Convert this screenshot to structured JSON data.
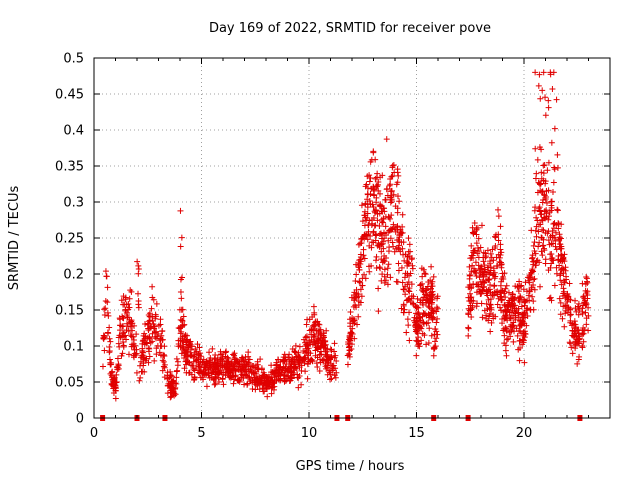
{
  "chart_data": {
    "type": "scatter",
    "title": "Day 169 of 2022, SRMTID for receiver pove",
    "xlabel": "GPS time / hours",
    "ylabel": "SRMTID / TECUs",
    "xlim": [
      0,
      24
    ],
    "ylim": [
      0,
      0.5
    ],
    "xticks": [
      0,
      5,
      10,
      15,
      20
    ],
    "xtick_labels": [
      "0",
      "5",
      "10",
      "15",
      "20"
    ],
    "yticks": [
      0,
      0.05,
      0.1,
      0.15,
      0.2,
      0.25,
      0.3,
      0.35,
      0.4,
      0.45,
      0.5
    ],
    "ytick_labels": [
      "0",
      "0.05",
      "0.1",
      "0.15",
      "0.2",
      "0.25",
      "0.3",
      "0.35",
      "0.4",
      "0.45",
      "0.5"
    ],
    "grid": true,
    "marker": "plus",
    "color": "#e00000",
    "zero_markers_x": [
      0.4,
      2.0,
      3.3,
      11.3,
      11.8,
      15.8,
      17.4,
      22.6
    ],
    "series": [
      {
        "name": "SRMTID",
        "segments": [
          {
            "x0": 0.4,
            "x1": 2.0,
            "n": 150,
            "pts": [
              [
                0.4,
                0.09
              ],
              [
                0.6,
                0.18
              ],
              [
                0.8,
                0.06
              ],
              [
                1.0,
                0.04
              ],
              [
                1.2,
                0.11
              ],
              [
                1.5,
                0.15
              ],
              [
                1.8,
                0.12
              ],
              [
                2.0,
                0.09
              ]
            ]
          },
          {
            "x0": 2.0,
            "x1": 2.1,
            "n": 8,
            "pts": [
              [
                2.0,
                0.19
              ],
              [
                2.1,
                0.17
              ]
            ]
          },
          {
            "x0": 2.1,
            "x1": 3.3,
            "n": 110,
            "pts": [
              [
                2.1,
                0.07
              ],
              [
                2.4,
                0.1
              ],
              [
                2.7,
                0.13
              ],
              [
                3.0,
                0.12
              ],
              [
                3.3,
                0.08
              ]
            ]
          },
          {
            "x0": 3.4,
            "x1": 11.3,
            "n": 850,
            "pts": [
              [
                3.4,
                0.05
              ],
              [
                3.8,
                0.04
              ],
              [
                4.0,
                0.13
              ],
              [
                4.3,
                0.09
              ],
              [
                5.0,
                0.07
              ],
              [
                6.0,
                0.07
              ],
              [
                7.0,
                0.07
              ],
              [
                8.0,
                0.05
              ],
              [
                9.0,
                0.07
              ],
              [
                9.7,
                0.08
              ],
              [
                10.2,
                0.12
              ],
              [
                10.6,
                0.1
              ],
              [
                11.0,
                0.07
              ],
              [
                11.3,
                0.09
              ]
            ]
          },
          {
            "x0": 4.0,
            "x1": 4.1,
            "n": 6,
            "pts": [
              [
                4.0,
                0.22
              ],
              [
                4.1,
                0.21
              ]
            ]
          },
          {
            "x0": 11.8,
            "x1": 15.8,
            "n": 520,
            "pts": [
              [
                11.8,
                0.08
              ],
              [
                12.2,
                0.17
              ],
              [
                12.6,
                0.27
              ],
              [
                13.0,
                0.29
              ],
              [
                13.5,
                0.26
              ],
              [
                14.0,
                0.3
              ],
              [
                14.4,
                0.2
              ],
              [
                14.8,
                0.18
              ],
              [
                15.0,
                0.12
              ],
              [
                15.3,
                0.16
              ]
            ]
          },
          {
            "x0": 15.8,
            "x1": 16.0,
            "n": 20,
            "pts": [
              [
                15.8,
                0.1
              ],
              [
                16.0,
                0.15
              ]
            ]
          },
          {
            "x0": 17.4,
            "x1": 22.6,
            "n": 680,
            "pts": [
              [
                17.4,
                0.15
              ],
              [
                17.7,
                0.22
              ],
              [
                18.0,
                0.2
              ],
              [
                18.4,
                0.18
              ],
              [
                18.8,
                0.22
              ],
              [
                19.2,
                0.14
              ],
              [
                19.6,
                0.15
              ],
              [
                20.0,
                0.13
              ],
              [
                20.4,
                0.2
              ],
              [
                20.8,
                0.3
              ],
              [
                21.0,
                0.28
              ],
              [
                21.4,
                0.24
              ],
              [
                21.8,
                0.2
              ],
              [
                22.0,
                0.17
              ],
              [
                22.2,
                0.12
              ]
            ]
          },
          {
            "x0": 20.5,
            "x1": 21.6,
            "n": 30,
            "pts": [
              [
                20.5,
                0.38
              ],
              [
                20.9,
                0.44
              ],
              [
                21.3,
                0.4
              ],
              [
                21.6,
                0.37
              ]
            ]
          },
          {
            "x0": 22.7,
            "x1": 23.0,
            "n": 40,
            "pts": [
              [
                22.7,
                0.14
              ],
              [
                23.0,
                0.16
              ]
            ]
          }
        ]
      }
    ]
  }
}
